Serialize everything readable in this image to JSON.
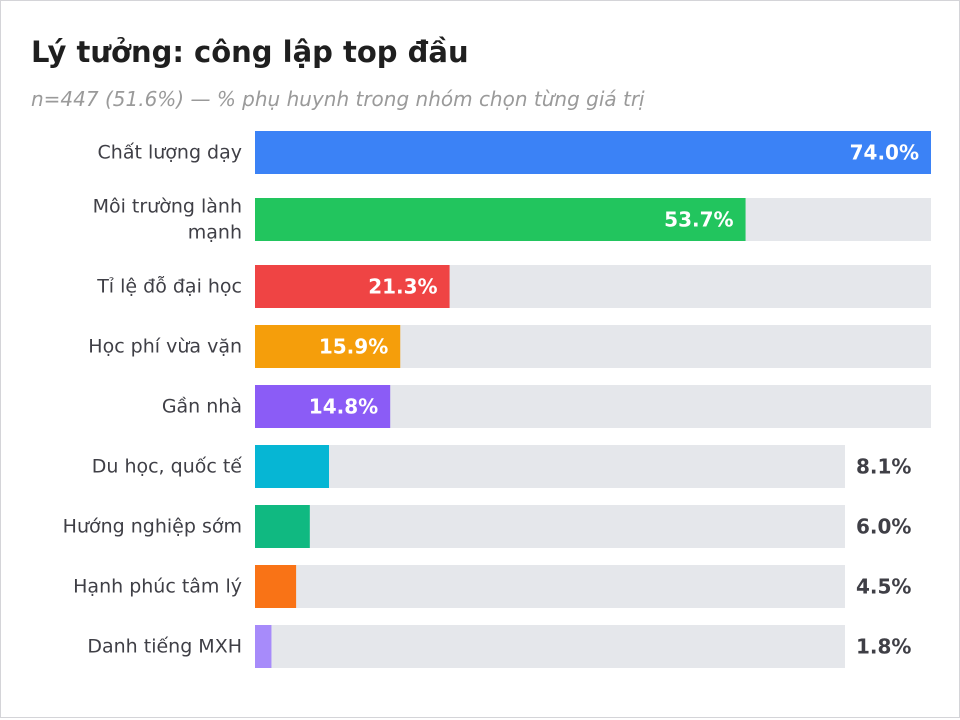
{
  "chart_data": {
    "type": "bar",
    "orientation": "horizontal",
    "title": "Lý tưởng: công lập top đầu",
    "subtitle": "n=447 (51.6%) — % phụ huynh trong nhóm chọn từng giá trị",
    "xlim": [
      0,
      100
    ],
    "grid": false,
    "categories": [
      "Chất lượng dạy",
      "Môi trường lành mạnh",
      "Tỉ lệ đỗ đại học",
      "Học phí vừa vặn",
      "Gần nhà",
      "Du học, quốc tế",
      "Hướng nghiệp sớm",
      "Hạnh phúc tâm lý",
      "Danh tiếng MXH"
    ],
    "label_lines": [
      [
        "Chất lượng dạy"
      ],
      [
        "Môi trường lành",
        "mạnh"
      ],
      [
        "Tỉ lệ đỗ đại học"
      ],
      [
        "Học phí vừa vặn"
      ],
      [
        "Gần nhà"
      ],
      [
        "Du học, quốc tế"
      ],
      [
        "Hướng nghiệp sớm"
      ],
      [
        "Hạnh phúc tâm lý"
      ],
      [
        "Danh tiếng MXH"
      ]
    ],
    "values": [
      74.0,
      53.7,
      21.3,
      15.9,
      14.8,
      8.1,
      6.0,
      4.5,
      1.8
    ],
    "value_labels": [
      "74.0%",
      "53.7%",
      "21.3%",
      "15.9%",
      "14.8%",
      "8.1%",
      "6.0%",
      "4.5%",
      "1.8%"
    ],
    "colors": [
      "#3b82f6",
      "#22c55e",
      "#ef4444",
      "#f59e0b",
      "#8b5cf6",
      "#06b6d4",
      "#10b981",
      "#f97316",
      "#a78bfa"
    ],
    "track_color": "#e5e7eb"
  }
}
